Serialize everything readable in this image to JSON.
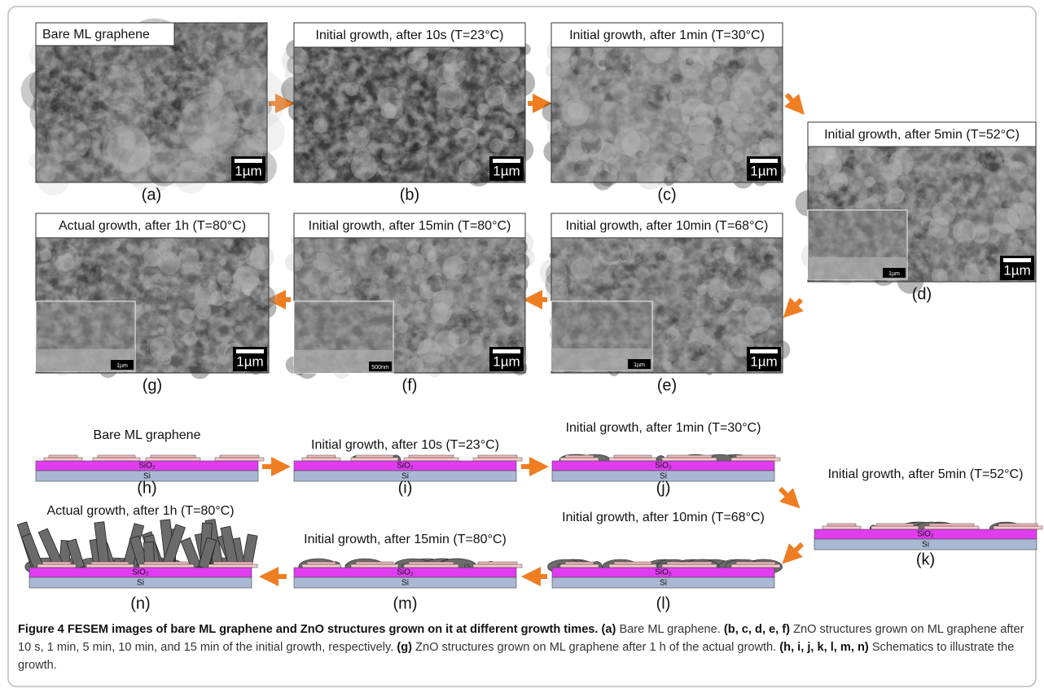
{
  "sem_panels": [
    {
      "label": "(a)",
      "title": "Bare ML graphene",
      "scale_bar": "1µm"
    },
    {
      "label": "(b)",
      "title": "Initial growth, after 10s (T=23°C)",
      "scale_bar": "1µm"
    },
    {
      "label": "(c)",
      "title": "Initial growth, after 1min (T=30°C)",
      "scale_bar": "1µm"
    },
    {
      "label": "(d)",
      "title": "Initial growth, after 5min (T=52°C)",
      "scale_bar": "1µm",
      "inset_scale_bar": "1µm"
    },
    {
      "label": "(e)",
      "title": "Initial growth, after 10min (T=68°C)",
      "scale_bar": "1µm",
      "inset_scale_bar": "1µm"
    },
    {
      "label": "(f)",
      "title": "Initial growth, after 15min (T=80°C)",
      "scale_bar": "1µm",
      "inset_scale_bar": "500nm"
    },
    {
      "label": "(g)",
      "title": "Actual growth, after 1h (T=80°C)",
      "scale_bar": "1µm",
      "inset_scale_bar": "1µm"
    }
  ],
  "schematic_panels": [
    {
      "label": "(h)",
      "title": "Bare ML graphene"
    },
    {
      "label": "(i)",
      "title": "Initial growth, after 10s (T=23°C)"
    },
    {
      "label": "(j)",
      "title": "Initial growth, after 1min (T=30°C)"
    },
    {
      "label": "(k)",
      "title": "Initial growth, after 5min (T=52°C)"
    },
    {
      "label": "(l)",
      "title": "Initial growth, after 10min (T=68°C)"
    },
    {
      "label": "(m)",
      "title": "Initial growth, after 15min (T=80°C)"
    },
    {
      "label": "(n)",
      "title": "Actual growth, after 1h (T=80°C)"
    }
  ],
  "layers": {
    "oxide": "SiO₂",
    "substrate": "Si"
  },
  "caption": {
    "title": "Figure 4 FESEM images of bare ML graphene and ZnO structures grown on it at different growth times.",
    "items": [
      {
        "key": "(a)",
        "text": "Bare ML graphene."
      },
      {
        "key": "(b, c, d, e, f)",
        "text": "ZnO structures grown on ML graphene after 10 s, 1 min, 5 min, 10 min, and 15 min of the initial growth, respectively."
      },
      {
        "key": "(g)",
        "text": "ZnO structures grown on ML graphene after 1 h of the actual growth."
      },
      {
        "key": "(h, i, j, k, l, m, n)",
        "text": "Schematics to illustrate the growth."
      }
    ]
  }
}
